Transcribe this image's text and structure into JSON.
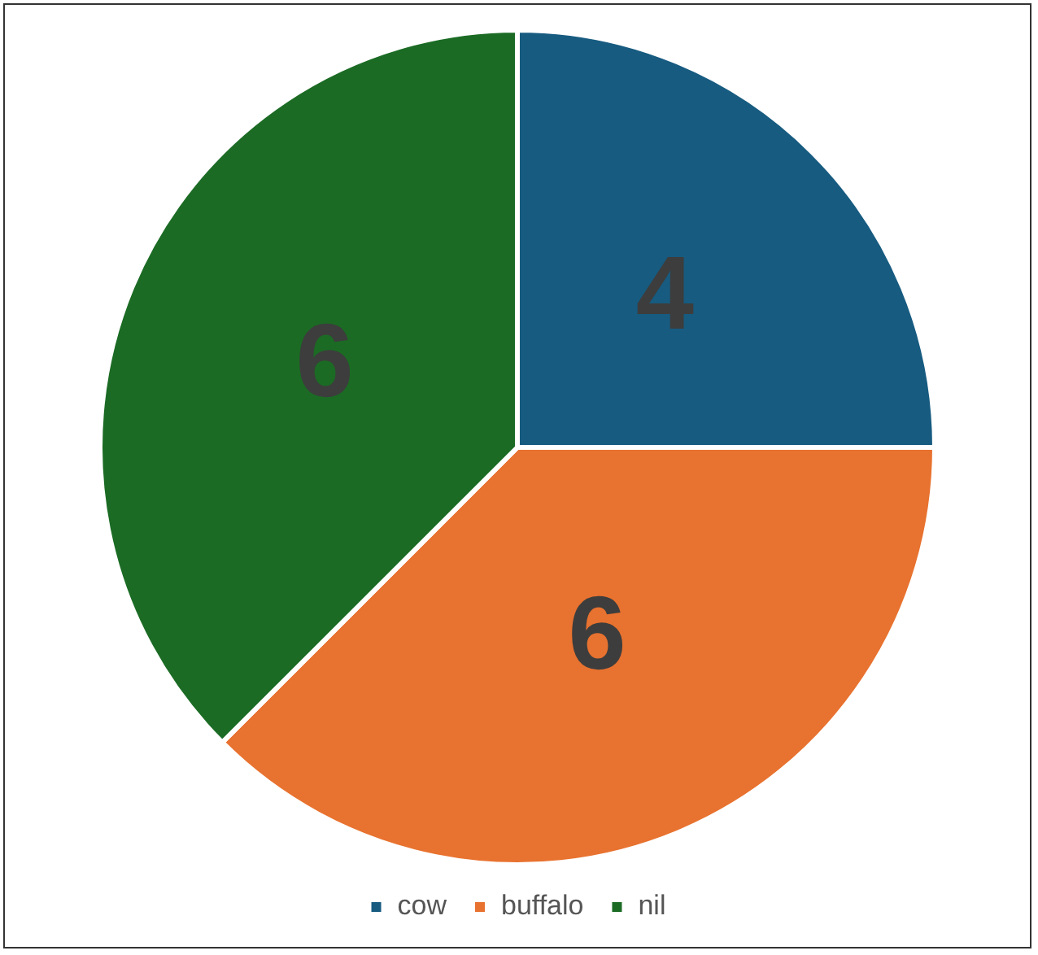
{
  "chart_data": {
    "type": "pie",
    "categories": [
      "cow",
      "buffalo",
      "nil"
    ],
    "values": [
      4,
      6,
      6
    ],
    "colors": [
      "#175b80",
      "#e8722f",
      "#1b6b24"
    ],
    "data_labels": true,
    "legend": "bottom"
  }
}
